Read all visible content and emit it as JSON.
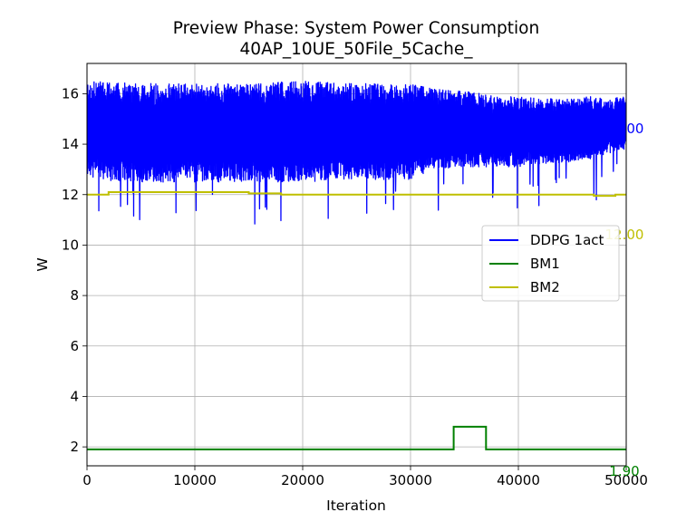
{
  "chart_data": {
    "type": "line",
    "title_line1": "Preview Phase: System Power Consumption",
    "title_line2": "40AP_10UE_50File_5Cache_",
    "xlabel": "Iteration",
    "ylabel": "W",
    "xlim": [
      0,
      50000
    ],
    "ylim": [
      1.25,
      17.2
    ],
    "xticks": [
      0,
      10000,
      20000,
      30000,
      40000,
      50000
    ],
    "xtick_labels": [
      "0",
      "10000",
      "20000",
      "30000",
      "40000",
      "50000"
    ],
    "yticks": [
      2,
      4,
      6,
      8,
      10,
      12,
      14,
      16
    ],
    "ytick_labels": [
      "2",
      "4",
      "6",
      "8",
      "10",
      "12",
      "14",
      "16"
    ],
    "grid": true,
    "legend_position": "center-right",
    "series": [
      {
        "name": "DDPG 1act",
        "color": "#0000ff",
        "band": {
          "x": [
            0,
            5000,
            10000,
            15000,
            20000,
            25000,
            28000,
            30000,
            32000,
            35000,
            38000,
            40000,
            42000,
            45000,
            47000,
            48000,
            50000
          ],
          "upper": [
            16.5,
            16.4,
            16.4,
            16.4,
            16.5,
            16.4,
            16.4,
            16.4,
            16.2,
            16.1,
            15.9,
            15.9,
            15.8,
            15.8,
            15.9,
            15.8,
            15.9
          ],
          "lower": [
            12.6,
            12.5,
            12.5,
            12.5,
            12.5,
            12.6,
            12.6,
            12.6,
            13.0,
            13.1,
            13.1,
            13.1,
            13.2,
            13.3,
            13.4,
            13.6,
            13.8
          ]
        },
        "end_annotation": "14.00"
      },
      {
        "name": "BM1",
        "color": "#008000",
        "x": [
          0,
          34000,
          34000,
          37000,
          37000,
          50000
        ],
        "y": [
          1.9,
          1.9,
          2.8,
          2.8,
          1.9,
          1.9
        ],
        "end_annotation": "1.90"
      },
      {
        "name": "BM2",
        "color": "#bfbf00",
        "x": [
          0,
          2000,
          2000,
          15000,
          15000,
          18000,
          18000,
          47000,
          47000,
          49000,
          49000,
          50000
        ],
        "y": [
          12.0,
          12.0,
          12.1,
          12.1,
          12.05,
          12.05,
          12.0,
          12.0,
          11.95,
          11.95,
          12.0,
          12.0
        ],
        "end_annotation": "12.00"
      }
    ]
  }
}
